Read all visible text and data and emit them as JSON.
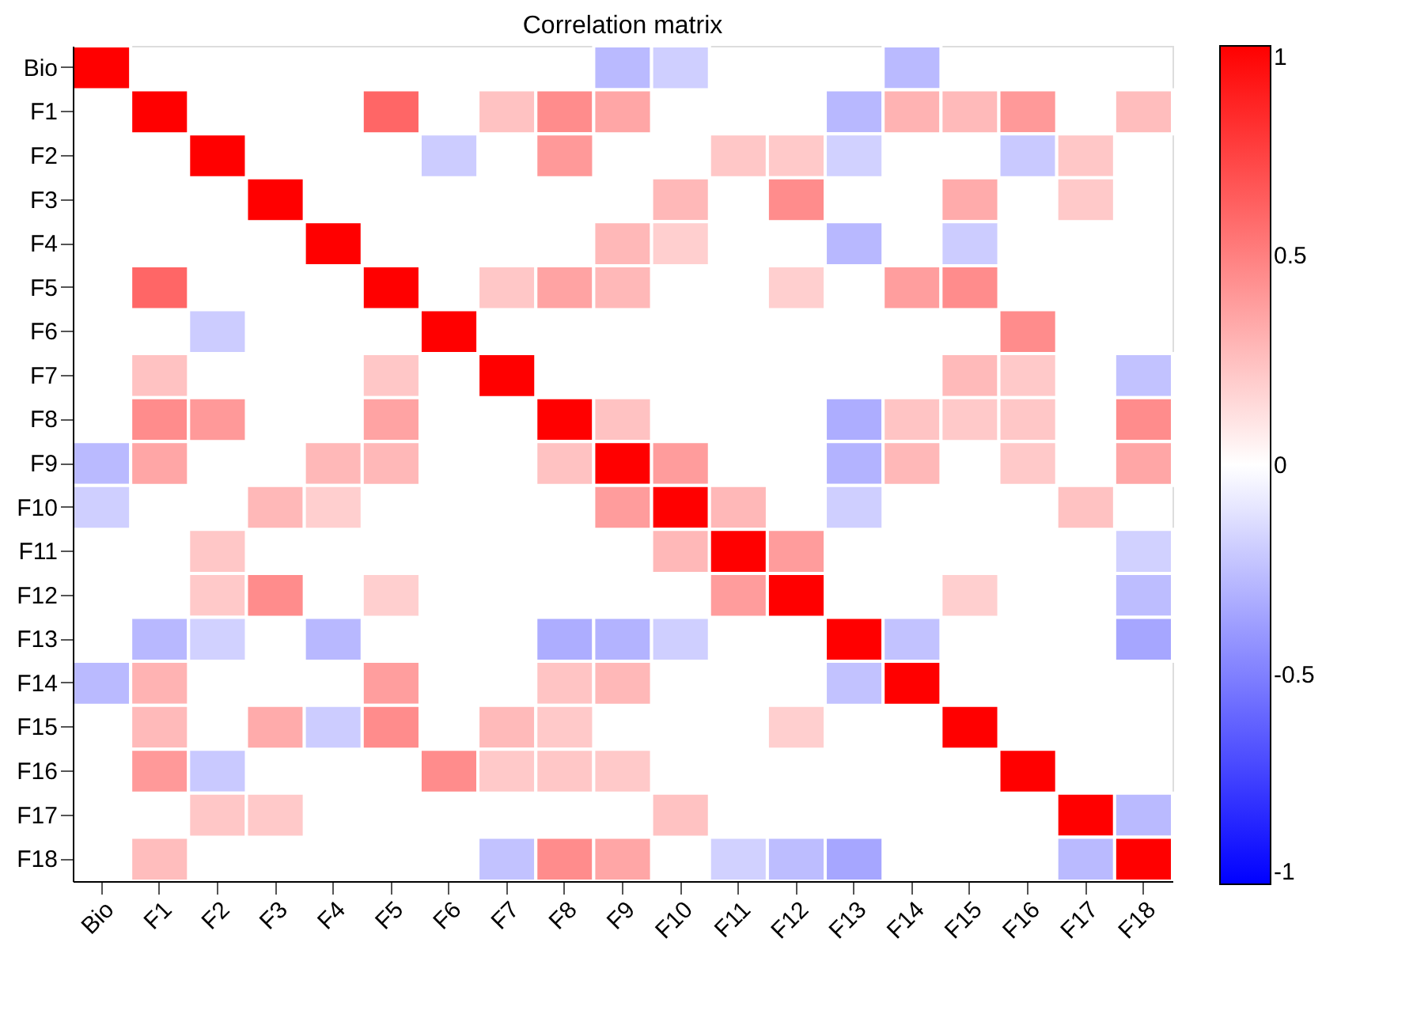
{
  "chart_data": {
    "type": "heatmap",
    "title": "Correlation matrix",
    "categories": [
      "Bio",
      "F1",
      "F2",
      "F3",
      "F4",
      "F5",
      "F6",
      "F7",
      "F8",
      "F9",
      "F10",
      "F11",
      "F12",
      "F13",
      "F14",
      "F15",
      "F16",
      "F17",
      "F18"
    ],
    "y_categories": [
      "Bio",
      "F1",
      "F2",
      "F3",
      "F4",
      "F5",
      "F6",
      "F7",
      "F8",
      "F9",
      "F10",
      "F11",
      "F12",
      "F13",
      "F14",
      "F15",
      "F16",
      "F17",
      "F18"
    ],
    "cells": [
      [
        1,
        null,
        null,
        null,
        null,
        null,
        null,
        null,
        null,
        -0.27,
        -0.19,
        null,
        null,
        null,
        -0.27,
        null,
        null,
        null,
        null
      ],
      [
        null,
        1,
        null,
        null,
        null,
        0.6,
        null,
        0.24,
        0.45,
        0.35,
        null,
        null,
        null,
        -0.28,
        0.3,
        0.27,
        0.4,
        null,
        0.26
      ],
      [
        null,
        null,
        1,
        null,
        null,
        null,
        -0.2,
        null,
        0.4,
        null,
        null,
        0.22,
        0.21,
        -0.18,
        null,
        null,
        -0.21,
        0.22,
        null
      ],
      [
        null,
        null,
        null,
        1,
        null,
        null,
        null,
        null,
        null,
        null,
        0.28,
        null,
        0.45,
        null,
        null,
        0.33,
        null,
        0.21,
        null
      ],
      [
        null,
        null,
        null,
        null,
        1,
        null,
        null,
        null,
        null,
        0.28,
        0.19,
        null,
        null,
        -0.28,
        null,
        -0.2,
        null,
        null,
        null
      ],
      [
        null,
        0.6,
        null,
        null,
        null,
        1,
        null,
        0.22,
        0.36,
        0.28,
        null,
        null,
        0.19,
        null,
        0.38,
        0.45,
        null,
        null,
        null
      ],
      [
        null,
        null,
        -0.2,
        null,
        null,
        null,
        1,
        null,
        null,
        null,
        null,
        null,
        null,
        null,
        null,
        null,
        0.45,
        null,
        null
      ],
      [
        null,
        0.24,
        null,
        null,
        null,
        0.22,
        null,
        1,
        null,
        null,
        null,
        null,
        null,
        null,
        null,
        0.27,
        0.21,
        null,
        -0.24
      ],
      [
        null,
        0.45,
        0.4,
        null,
        null,
        0.36,
        null,
        null,
        1,
        0.24,
        null,
        null,
        null,
        -0.32,
        0.23,
        0.21,
        0.22,
        null,
        0.45
      ],
      [
        -0.27,
        0.35,
        null,
        null,
        0.28,
        0.28,
        null,
        null,
        0.24,
        1,
        0.39,
        null,
        null,
        -0.3,
        0.28,
        null,
        0.21,
        null,
        0.35
      ],
      [
        -0.19,
        null,
        null,
        0.28,
        0.19,
        null,
        null,
        null,
        null,
        0.39,
        1,
        0.28,
        null,
        -0.19,
        null,
        null,
        null,
        0.24,
        null
      ],
      [
        null,
        null,
        0.22,
        null,
        null,
        null,
        null,
        null,
        null,
        null,
        0.28,
        1,
        0.39,
        null,
        null,
        null,
        null,
        null,
        -0.18
      ],
      [
        null,
        null,
        0.21,
        0.45,
        null,
        0.19,
        null,
        null,
        null,
        null,
        null,
        0.39,
        1,
        null,
        null,
        0.19,
        null,
        null,
        -0.26
      ],
      [
        null,
        -0.28,
        -0.18,
        null,
        -0.28,
        null,
        null,
        null,
        -0.32,
        -0.3,
        -0.19,
        null,
        null,
        1,
        -0.24,
        null,
        null,
        null,
        -0.35
      ],
      [
        -0.27,
        0.3,
        null,
        null,
        null,
        0.38,
        null,
        null,
        0.23,
        0.28,
        null,
        null,
        null,
        -0.24,
        1,
        null,
        null,
        null,
        null
      ],
      [
        null,
        0.27,
        null,
        0.33,
        -0.2,
        0.45,
        null,
        0.27,
        0.21,
        null,
        null,
        null,
        0.19,
        null,
        null,
        1,
        null,
        null,
        null
      ],
      [
        null,
        0.4,
        -0.21,
        null,
        null,
        null,
        0.45,
        0.21,
        0.22,
        0.21,
        null,
        null,
        null,
        null,
        null,
        null,
        1,
        null,
        null
      ],
      [
        null,
        null,
        0.22,
        0.21,
        null,
        null,
        null,
        null,
        null,
        null,
        0.24,
        null,
        null,
        null,
        null,
        null,
        null,
        1,
        -0.27
      ],
      [
        null,
        0.26,
        null,
        null,
        null,
        null,
        null,
        -0.24,
        0.45,
        0.35,
        null,
        -0.18,
        -0.26,
        -0.35,
        null,
        null,
        null,
        -0.27,
        1
      ]
    ],
    "clim": [
      -1,
      1
    ],
    "cticks": [
      -1,
      -0.5,
      0,
      0.5,
      1
    ],
    "grid": false
  }
}
